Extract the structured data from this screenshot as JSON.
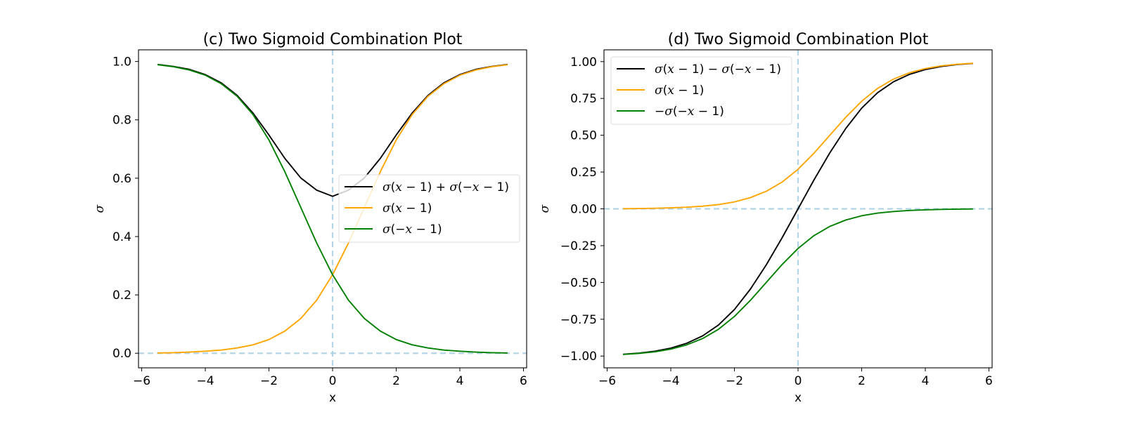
{
  "chart_data": [
    {
      "type": "line",
      "title": "(c) Two Sigmoid Combination Plot",
      "xlabel": "x",
      "ylabel": "σ",
      "xlim": [
        -6.1,
        6.1
      ],
      "ylim": [
        -0.05,
        1.04
      ],
      "xticks": [
        -6,
        -4,
        -2,
        0,
        2,
        4,
        6
      ],
      "xtick_labels": [
        "−6",
        "−4",
        "−2",
        "0",
        "2",
        "4",
        "6"
      ],
      "yticks": [
        0.0,
        0.2,
        0.4,
        0.6,
        0.8,
        1.0
      ],
      "ytick_labels": [
        "0.0",
        "0.2",
        "0.4",
        "0.6",
        "0.8",
        "1.0"
      ],
      "grid": false,
      "reference_lines": {
        "x": 0,
        "y": 0,
        "color": "#a6cee3",
        "style": "dashed"
      },
      "legend_position": "center-right",
      "x": [
        -5.5,
        -5.0,
        -4.5,
        -4.0,
        -3.5,
        -3.0,
        -2.5,
        -2.0,
        -1.5,
        -1.0,
        -0.5,
        0.0,
        0.5,
        1.0,
        1.5,
        2.0,
        2.5,
        3.0,
        3.5,
        4.0,
        4.5,
        5.0,
        5.5
      ],
      "series": [
        {
          "name": "σ(x − 1) + σ(−x − 1)",
          "color": "#000000",
          "values": [
            0.99,
            0.983,
            0.973,
            0.955,
            0.927,
            0.884,
            0.823,
            0.748,
            0.668,
            0.601,
            0.559,
            0.538,
            0.559,
            0.601,
            0.668,
            0.748,
            0.823,
            0.884,
            0.927,
            0.955,
            0.973,
            0.983,
            0.99
          ]
        },
        {
          "name": "σ(x − 1)",
          "color": "#ffa500",
          "values": [
            0.001,
            0.002,
            0.004,
            0.007,
            0.011,
            0.018,
            0.029,
            0.047,
            0.076,
            0.119,
            0.182,
            0.269,
            0.378,
            0.5,
            0.622,
            0.731,
            0.818,
            0.881,
            0.924,
            0.953,
            0.971,
            0.982,
            0.989
          ]
        },
        {
          "name": "σ(−x − 1)",
          "color": "#008000",
          "values": [
            0.989,
            0.982,
            0.971,
            0.953,
            0.924,
            0.881,
            0.818,
            0.731,
            0.622,
            0.5,
            0.378,
            0.269,
            0.182,
            0.119,
            0.076,
            0.047,
            0.029,
            0.018,
            0.011,
            0.007,
            0.004,
            0.002,
            0.001
          ]
        }
      ]
    },
    {
      "type": "line",
      "title": "(d) Two Sigmoid Combination Plot",
      "xlabel": "x",
      "ylabel": "σ",
      "xlim": [
        -6.1,
        6.1
      ],
      "ylim": [
        -1.08,
        1.08
      ],
      "xticks": [
        -6,
        -4,
        -2,
        0,
        2,
        4,
        6
      ],
      "xtick_labels": [
        "−6",
        "−4",
        "−2",
        "0",
        "2",
        "4",
        "6"
      ],
      "yticks": [
        -1.0,
        -0.75,
        -0.5,
        -0.25,
        0.0,
        0.25,
        0.5,
        0.75,
        1.0
      ],
      "ytick_labels": [
        "−1.00",
        "−0.75",
        "−0.50",
        "−0.25",
        "0.00",
        "0.25",
        "0.50",
        "0.75",
        "1.00"
      ],
      "grid": false,
      "reference_lines": {
        "x": 0,
        "y": 0,
        "color": "#a6cee3",
        "style": "dashed"
      },
      "legend_position": "top-left",
      "x": [
        -5.5,
        -5.0,
        -4.5,
        -4.0,
        -3.5,
        -3.0,
        -2.5,
        -2.0,
        -1.5,
        -1.0,
        -0.5,
        0.0,
        0.5,
        1.0,
        1.5,
        2.0,
        2.5,
        3.0,
        3.5,
        4.0,
        4.5,
        5.0,
        5.5
      ],
      "series": [
        {
          "name": "σ(x − 1) − σ(−x − 1)",
          "color": "#000000",
          "values": [
            -0.988,
            -0.98,
            -0.967,
            -0.946,
            -0.913,
            -0.863,
            -0.789,
            -0.684,
            -0.546,
            -0.381,
            -0.196,
            0.0,
            0.196,
            0.381,
            0.546,
            0.684,
            0.789,
            0.863,
            0.913,
            0.946,
            0.967,
            0.98,
            0.988
          ]
        },
        {
          "name": "σ(x − 1)",
          "color": "#ffa500",
          "values": [
            0.001,
            0.002,
            0.004,
            0.007,
            0.011,
            0.018,
            0.029,
            0.047,
            0.076,
            0.119,
            0.182,
            0.269,
            0.378,
            0.5,
            0.622,
            0.731,
            0.818,
            0.881,
            0.924,
            0.953,
            0.971,
            0.982,
            0.989
          ]
        },
        {
          "name": "−σ(−x − 1)",
          "color": "#008000",
          "values": [
            -0.989,
            -0.982,
            -0.971,
            -0.953,
            -0.924,
            -0.881,
            -0.818,
            -0.731,
            -0.622,
            -0.5,
            -0.378,
            -0.269,
            -0.182,
            -0.119,
            -0.076,
            -0.047,
            -0.029,
            -0.018,
            -0.011,
            -0.007,
            -0.004,
            -0.002,
            -0.001
          ]
        }
      ]
    }
  ]
}
